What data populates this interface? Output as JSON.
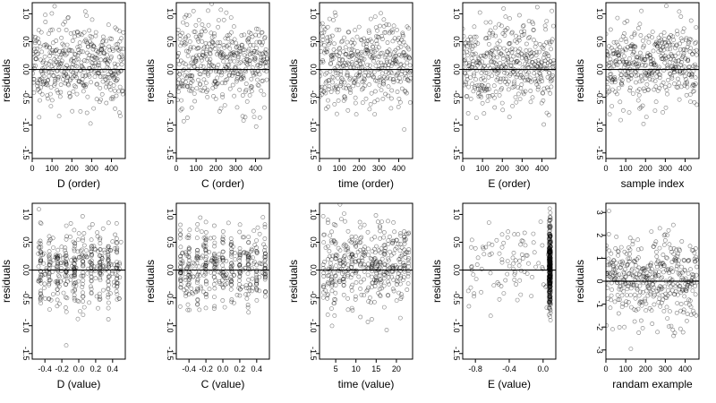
{
  "chart_data": [
    {
      "type": "scatter",
      "xlabel": "D (order)",
      "ylabel": "residuals",
      "xlim": [
        0,
        470
      ],
      "ylim": [
        -1.6,
        1.2
      ],
      "xticks": [
        {
          "v": 0,
          "t": "0"
        },
        {
          "v": 100,
          "t": "100"
        },
        {
          "v": 200,
          "t": "200"
        },
        {
          "v": 300,
          "t": "300"
        },
        {
          "v": 400,
          "t": "400"
        }
      ],
      "yticks": [
        {
          "v": 1.0,
          "t": "1.0"
        },
        {
          "v": 0.5,
          "t": "0.5"
        },
        {
          "v": 0.0,
          "t": "0.0"
        },
        {
          "v": -0.5,
          "t": "-0.5"
        },
        {
          "v": -1.0,
          "t": "-1.0"
        },
        {
          "v": -1.5,
          "t": "-1.5"
        }
      ],
      "hline": 0,
      "points": {
        "mode": "order",
        "n": 420,
        "xmax": 460,
        "mean": 0.1,
        "sd": 0.38,
        "seed": 11
      }
    },
    {
      "type": "scatter",
      "xlabel": "C (order)",
      "ylabel": "residuals",
      "xlim": [
        0,
        470
      ],
      "ylim": [
        -1.6,
        1.2
      ],
      "xticks": [
        {
          "v": 0,
          "t": "0"
        },
        {
          "v": 100,
          "t": "100"
        },
        {
          "v": 200,
          "t": "200"
        },
        {
          "v": 300,
          "t": "300"
        },
        {
          "v": 400,
          "t": "400"
        }
      ],
      "yticks": [
        {
          "v": 1.0,
          "t": "1.0"
        },
        {
          "v": 0.5,
          "t": "0.5"
        },
        {
          "v": 0.0,
          "t": "0.0"
        },
        {
          "v": -0.5,
          "t": "-0.5"
        },
        {
          "v": -1.0,
          "t": "-1.0"
        },
        {
          "v": -1.5,
          "t": "-1.5"
        }
      ],
      "hline": 0,
      "points": {
        "mode": "order",
        "n": 420,
        "xmax": 460,
        "mean": 0.1,
        "sd": 0.38,
        "seed": 23
      }
    },
    {
      "type": "scatter",
      "xlabel": "time (order)",
      "ylabel": "residuals",
      "xlim": [
        0,
        470
      ],
      "ylim": [
        -1.6,
        1.2
      ],
      "xticks": [
        {
          "v": 0,
          "t": "0"
        },
        {
          "v": 100,
          "t": "100"
        },
        {
          "v": 200,
          "t": "200"
        },
        {
          "v": 300,
          "t": "300"
        },
        {
          "v": 400,
          "t": "400"
        }
      ],
      "yticks": [
        {
          "v": 1.0,
          "t": "1.0"
        },
        {
          "v": 0.5,
          "t": "0.5"
        },
        {
          "v": 0.0,
          "t": "0.0"
        },
        {
          "v": -0.5,
          "t": "-0.5"
        },
        {
          "v": -1.0,
          "t": "-1.0"
        },
        {
          "v": -1.5,
          "t": "-1.5"
        }
      ],
      "hline": 0,
      "points": {
        "mode": "order",
        "n": 420,
        "xmax": 460,
        "mean": 0.1,
        "sd": 0.38,
        "seed": 37
      }
    },
    {
      "type": "scatter",
      "xlabel": "E (order)",
      "ylabel": "residuals",
      "xlim": [
        0,
        470
      ],
      "ylim": [
        -1.6,
        1.2
      ],
      "xticks": [
        {
          "v": 0,
          "t": "0"
        },
        {
          "v": 100,
          "t": "100"
        },
        {
          "v": 200,
          "t": "200"
        },
        {
          "v": 300,
          "t": "300"
        },
        {
          "v": 400,
          "t": "400"
        }
      ],
      "yticks": [
        {
          "v": 1.0,
          "t": "1.0"
        },
        {
          "v": 0.5,
          "t": "0.5"
        },
        {
          "v": 0.0,
          "t": "0.0"
        },
        {
          "v": -0.5,
          "t": "-0.5"
        },
        {
          "v": -1.0,
          "t": "-1.0"
        },
        {
          "v": -1.5,
          "t": "-1.5"
        }
      ],
      "hline": 0,
      "points": {
        "mode": "order",
        "n": 420,
        "xmax": 460,
        "mean": 0.1,
        "sd": 0.38,
        "seed": 41
      }
    },
    {
      "type": "scatter",
      "xlabel": "sample index",
      "ylabel": "residuals",
      "xlim": [
        0,
        470
      ],
      "ylim": [
        -1.6,
        1.2
      ],
      "xticks": [
        {
          "v": 0,
          "t": "0"
        },
        {
          "v": 100,
          "t": "100"
        },
        {
          "v": 200,
          "t": "200"
        },
        {
          "v": 300,
          "t": "300"
        },
        {
          "v": 400,
          "t": "400"
        }
      ],
      "yticks": [
        {
          "v": 1.0,
          "t": "1.0"
        },
        {
          "v": 0.5,
          "t": "0.5"
        },
        {
          "v": 0.0,
          "t": "0.0"
        },
        {
          "v": -0.5,
          "t": "-0.5"
        },
        {
          "v": -1.0,
          "t": "-1.0"
        },
        {
          "v": -1.5,
          "t": "-1.5"
        }
      ],
      "hline": 0,
      "points": {
        "mode": "order",
        "n": 420,
        "xmax": 460,
        "mean": 0.1,
        "sd": 0.38,
        "seed": 53
      }
    },
    {
      "type": "scatter",
      "xlabel": "D (value)",
      "ylabel": "residuals",
      "xlim": [
        -0.55,
        0.55
      ],
      "ylim": [
        -1.6,
        1.2
      ],
      "xticks": [
        {
          "v": -0.4,
          "t": "-0.4"
        },
        {
          "v": -0.2,
          "t": "-0.2"
        },
        {
          "v": 0.0,
          "t": "0.0"
        },
        {
          "v": 0.2,
          "t": "0.2"
        },
        {
          "v": 0.4,
          "t": "0.4"
        }
      ],
      "yticks": [
        {
          "v": 1.0,
          "t": "1.0"
        },
        {
          "v": 0.5,
          "t": "0.5"
        },
        {
          "v": 0.0,
          "t": "0.0"
        },
        {
          "v": -0.5,
          "t": "-0.5"
        },
        {
          "v": -1.0,
          "t": "-1.0"
        },
        {
          "v": -1.5,
          "t": "-1.5"
        }
      ],
      "hline": 0,
      "points": {
        "mode": "value",
        "n": 420,
        "xrange": [
          -0.5,
          0.5
        ],
        "discrete": [
          -0.45,
          -0.35,
          -0.25,
          -0.15,
          -0.05,
          0.05,
          0.15,
          0.25,
          0.35,
          0.45
        ],
        "mean": 0.05,
        "sd": 0.35,
        "seed": 61
      }
    },
    {
      "type": "scatter",
      "xlabel": "C (value)",
      "ylabel": "residuals",
      "xlim": [
        -0.55,
        0.55
      ],
      "ylim": [
        -1.6,
        1.2
      ],
      "xticks": [
        {
          "v": -0.4,
          "t": "-0.4"
        },
        {
          "v": -0.2,
          "t": "-0.2"
        },
        {
          "v": 0.0,
          "t": "0.0"
        },
        {
          "v": 0.2,
          "t": "0.2"
        },
        {
          "v": 0.4,
          "t": "0.4"
        }
      ],
      "yticks": [
        {
          "v": 1.0,
          "t": "1.0"
        },
        {
          "v": 0.5,
          "t": "0.5"
        },
        {
          "v": 0.0,
          "t": "0.0"
        },
        {
          "v": -0.5,
          "t": "-0.5"
        },
        {
          "v": -1.0,
          "t": "-1.0"
        },
        {
          "v": -1.5,
          "t": "-1.5"
        }
      ],
      "hline": 0,
      "points": {
        "mode": "value",
        "n": 420,
        "xrange": [
          -0.5,
          0.5
        ],
        "discrete": [
          -0.5,
          -0.4,
          -0.3,
          -0.2,
          -0.1,
          0.0,
          0.1,
          0.2,
          0.3,
          0.4,
          0.5
        ],
        "mean": 0.05,
        "sd": 0.33,
        "seed": 67
      }
    },
    {
      "type": "scatter",
      "xlabel": "time (value)",
      "ylabel": "residuals",
      "xlim": [
        1,
        24
      ],
      "ylim": [
        -1.6,
        1.2
      ],
      "xticks": [
        {
          "v": 5,
          "t": "5"
        },
        {
          "v": 10,
          "t": "10"
        },
        {
          "v": 15,
          "t": "15"
        },
        {
          "v": 20,
          "t": "20"
        }
      ],
      "yticks": [
        {
          "v": 1.0,
          "t": "1.0"
        },
        {
          "v": 0.5,
          "t": "0.5"
        },
        {
          "v": 0.0,
          "t": "0.0"
        },
        {
          "v": -0.5,
          "t": "-0.5"
        },
        {
          "v": -1.0,
          "t": "-1.0"
        },
        {
          "v": -1.5,
          "t": "-1.5"
        }
      ],
      "hline": 0,
      "points": {
        "mode": "value",
        "n": 420,
        "xrange": [
          2,
          23
        ],
        "discrete": [
          2,
          3,
          4,
          5,
          6,
          7,
          8,
          9,
          10,
          11,
          12,
          13,
          14,
          15,
          16,
          17,
          18,
          19,
          20,
          21,
          22,
          23
        ],
        "mean": 0.1,
        "sd": 0.38,
        "seed": 71
      }
    },
    {
      "type": "scatter",
      "xlabel": "E (value)",
      "ylabel": "residuals",
      "xlim": [
        -0.95,
        0.15
      ],
      "ylim": [
        -1.6,
        1.2
      ],
      "xticks": [
        {
          "v": -0.8,
          "t": "-0.8"
        },
        {
          "v": -0.4,
          "t": "-0.4"
        },
        {
          "v": 0.0,
          "t": "0.0"
        }
      ],
      "yticks": [
        {
          "v": 1.0,
          "t": "1.0"
        },
        {
          "v": 0.5,
          "t": "0.5"
        },
        {
          "v": 0.0,
          "t": "0.0"
        },
        {
          "v": -0.5,
          "t": "-0.5"
        },
        {
          "v": -1.0,
          "t": "-1.0"
        },
        {
          "v": -1.5,
          "t": "-1.5"
        }
      ],
      "hline": 0,
      "points": {
        "mode": "evalue",
        "n": 420,
        "cluster_x": 0.08,
        "cluster_frac": 0.8,
        "scatter_range": [
          -0.9,
          0.08
        ],
        "mean": 0.1,
        "sd": 0.38,
        "seed": 79
      }
    },
    {
      "type": "scatter",
      "xlabel": "randam example",
      "ylabel": "residuals",
      "xlim": [
        0,
        470
      ],
      "ylim": [
        -3.4,
        3.4
      ],
      "xticks": [
        {
          "v": 0,
          "t": "0"
        },
        {
          "v": 100,
          "t": "100"
        },
        {
          "v": 200,
          "t": "200"
        },
        {
          "v": 300,
          "t": "300"
        },
        {
          "v": 400,
          "t": "400"
        }
      ],
      "yticks": [
        {
          "v": 3,
          "t": "3"
        },
        {
          "v": 2,
          "t": "2"
        },
        {
          "v": 1,
          "t": "1"
        },
        {
          "v": 0,
          "t": "0"
        },
        {
          "v": -1,
          "t": "-1"
        },
        {
          "v": -2,
          "t": "-2"
        },
        {
          "v": -3,
          "t": "-3"
        }
      ],
      "hline": 0,
      "points": {
        "mode": "order",
        "n": 420,
        "xmax": 460,
        "mean": 0.0,
        "sd": 1.0,
        "seed": 97
      }
    }
  ]
}
